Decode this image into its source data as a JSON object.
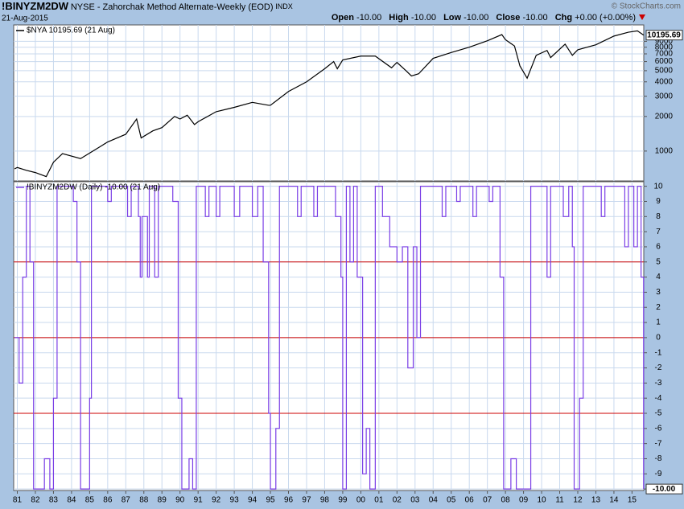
{
  "header": {
    "symbol": "!BINYZM2DW",
    "description": "NYSE - Zahorchak Method Alternate-Weekly (EOD)",
    "exchange": "INDX",
    "date": "21-Aug-2015",
    "copyright": "© StockCharts.com",
    "quote": [
      {
        "label": "Open",
        "value": "-10.00"
      },
      {
        "label": "High",
        "value": "-10.00"
      },
      {
        "label": "Low",
        "value": "-10.00"
      },
      {
        "label": "Close",
        "value": "-10.00"
      },
      {
        "label": "Chg",
        "value": "+0.00 (+0.00%)"
      }
    ]
  },
  "x_axis": {
    "xlim": [
      1980.8,
      2015.65
    ],
    "xticks": [
      {
        "value": 1981,
        "label": "81"
      },
      {
        "value": 1982,
        "label": "82"
      },
      {
        "value": 1983,
        "label": "83"
      },
      {
        "value": 1984,
        "label": "84"
      },
      {
        "value": 1985,
        "label": "85"
      },
      {
        "value": 1986,
        "label": "86"
      },
      {
        "value": 1987,
        "label": "87"
      },
      {
        "value": 1988,
        "label": "88"
      },
      {
        "value": 1989,
        "label": "89"
      },
      {
        "value": 1990,
        "label": "90"
      },
      {
        "value": 1991,
        "label": "91"
      },
      {
        "value": 1992,
        "label": "92"
      },
      {
        "value": 1993,
        "label": "93"
      },
      {
        "value": 1994,
        "label": "94"
      },
      {
        "value": 1995,
        "label": "95"
      },
      {
        "value": 1996,
        "label": "96"
      },
      {
        "value": 1997,
        "label": "97"
      },
      {
        "value": 1998,
        "label": "98"
      },
      {
        "value": 1999,
        "label": "99"
      },
      {
        "value": 2000,
        "label": "00"
      },
      {
        "value": 2001,
        "label": "01"
      },
      {
        "value": 2002,
        "label": "02"
      },
      {
        "value": 2003,
        "label": "03"
      },
      {
        "value": 2004,
        "label": "04"
      },
      {
        "value": 2005,
        "label": "05"
      },
      {
        "value": 2006,
        "label": "06"
      },
      {
        "value": 2007,
        "label": "07"
      },
      {
        "value": 2008,
        "label": "08"
      },
      {
        "value": 2009,
        "label": "09"
      },
      {
        "value": 2010,
        "label": "10"
      },
      {
        "value": 2011,
        "label": "11"
      },
      {
        "value": 2012,
        "label": "12"
      },
      {
        "value": 2013,
        "label": "13"
      },
      {
        "value": 2014,
        "label": "14"
      },
      {
        "value": 2015,
        "label": "15"
      }
    ]
  },
  "chart_data": [
    {
      "type": "line",
      "log_scale": true,
      "grid": true,
      "ylim": [
        550,
        12500
      ],
      "yticks": [
        1000,
        2000,
        3000,
        4000,
        5000,
        6000,
        7000,
        8000,
        9000
      ],
      "last_label": "10195.69",
      "series": [
        {
          "name": "$NYA 10195.69 (21 Aug)",
          "color": "#000000",
          "x": [
            1980.85,
            1981.0,
            1981.5,
            1982.0,
            1982.6,
            1983.0,
            1983.5,
            1984.5,
            1985.0,
            1986.0,
            1987.0,
            1987.6,
            1987.85,
            1988.5,
            1989.0,
            1989.7,
            1990.0,
            1990.4,
            1990.8,
            1991.0,
            1992.0,
            1993.0,
            1994.0,
            1994.9,
            1995.0,
            1996.0,
            1997.0,
            1998.0,
            1998.5,
            1998.7,
            1999.0,
            2000.0,
            2000.8,
            2001.7,
            2002.0,
            2002.5,
            2002.8,
            2003.2,
            2004.0,
            2005.0,
            2006.0,
            2007.0,
            2007.8,
            2008.0,
            2008.5,
            2008.8,
            2009.2,
            2009.7,
            2010.3,
            2010.5,
            2011.3,
            2011.7,
            2012.0,
            2013.0,
            2014.0,
            2014.8,
            2015.3,
            2015.64
          ],
          "values": [
            700,
            720,
            680,
            650,
            600,
            800,
            950,
            860,
            960,
            1200,
            1400,
            1900,
            1300,
            1500,
            1600,
            2000,
            1900,
            2050,
            1700,
            1800,
            2200,
            2400,
            2650,
            2500,
            2500,
            3300,
            4000,
            5200,
            6000,
            5200,
            6200,
            6700,
            6700,
            5300,
            5900,
            5000,
            4500,
            4700,
            6400,
            7200,
            8000,
            9100,
            10300,
            9300,
            8200,
            5500,
            4300,
            6800,
            7500,
            6500,
            8500,
            6800,
            7600,
            8400,
            10000,
            10800,
            11100,
            10195.69
          ]
        }
      ]
    },
    {
      "type": "line",
      "step": true,
      "grid": true,
      "ylim": [
        -10.1,
        10.3
      ],
      "yticks": [
        -10,
        -9,
        -8,
        -7,
        -6,
        -5,
        -4,
        -3,
        -2,
        -1,
        0,
        1,
        2,
        3,
        4,
        5,
        6,
        7,
        8,
        9,
        10
      ],
      "ref_lines": [
        5,
        0,
        -5
      ],
      "ref_color": "#cc0000",
      "last_label": "-10.00",
      "series": [
        {
          "name": "!BINYZM2DW (Daily) -10.00 (21 Aug)",
          "color": "#7a3ee6",
          "x": [
            1980.85,
            1981.1,
            1981.3,
            1981.5,
            1981.7,
            1981.9,
            1982.5,
            1982.8,
            1983.0,
            1983.2,
            1984.1,
            1984.3,
            1984.5,
            1985.0,
            1985.1,
            1986.0,
            1986.2,
            1987.1,
            1987.3,
            1987.7,
            1987.8,
            1987.9,
            1988.2,
            1988.3,
            1988.6,
            1988.8,
            1989.6,
            1989.9,
            1990.1,
            1990.5,
            1990.7,
            1990.9,
            1991.4,
            1991.6,
            1992.0,
            1992.2,
            1993.0,
            1993.3,
            1994.0,
            1994.3,
            1994.6,
            1994.9,
            1995.0,
            1995.3,
            1995.5,
            1996.5,
            1996.7,
            1997.4,
            1997.6,
            1998.6,
            1998.9,
            1999.0,
            1999.2,
            1999.4,
            1999.6,
            1999.8,
            2000.1,
            2000.3,
            2000.5,
            2000.8,
            2001.2,
            2001.6,
            2002.0,
            2002.3,
            2002.6,
            2002.9,
            2003.1,
            2003.3,
            2004.5,
            2004.7,
            2005.3,
            2005.5,
            2006.2,
            2006.4,
            2007.1,
            2007.3,
            2007.7,
            2007.9,
            2008.3,
            2008.6,
            2009.4,
            2010.3,
            2010.5,
            2011.2,
            2011.5,
            2011.7,
            2011.8,
            2012.1,
            2012.3,
            2013.3,
            2013.5,
            2014.6,
            2014.8,
            2015.1,
            2015.3,
            2015.5,
            2015.64
          ],
          "values": [
            0,
            -3,
            4,
            10,
            5,
            -10,
            -8,
            -10,
            -4,
            10,
            9,
            5,
            -10,
            -4,
            10,
            9,
            10,
            8,
            10,
            8,
            4,
            8,
            4,
            10,
            4,
            10,
            9,
            -4,
            -10,
            -8,
            -10,
            10,
            8,
            10,
            8,
            10,
            8,
            10,
            8,
            10,
            5,
            -5,
            -10,
            -6,
            10,
            8,
            10,
            8,
            10,
            8,
            4,
            -10,
            10,
            5,
            10,
            4,
            -9,
            -6,
            -10,
            10,
            8,
            6,
            5,
            6,
            -2,
            6,
            0,
            10,
            8,
            10,
            9,
            10,
            8,
            10,
            9,
            10,
            4,
            -10,
            -8,
            -10,
            10,
            4,
            10,
            8,
            10,
            6,
            -10,
            -4,
            10,
            8,
            10,
            6,
            10,
            6,
            10,
            4,
            -10
          ]
        }
      ]
    }
  ]
}
